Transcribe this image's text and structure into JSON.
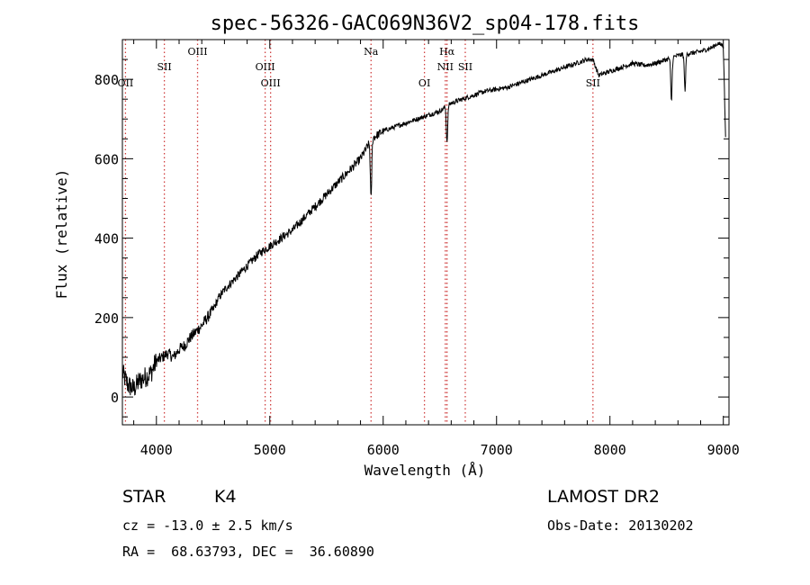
{
  "chart_data": {
    "type": "line",
    "title": "spec-56326-GAC069N36V2_sp04-178.fits",
    "xlabel": "Wavelength (Å)",
    "ylabel": "Flux (relative)",
    "xlim": [
      3700,
      9050
    ],
    "ylim": [
      -70,
      900
    ],
    "xticks": [
      4000,
      5000,
      6000,
      7000,
      8000,
      9000
    ],
    "yticks": [
      0,
      200,
      400,
      600,
      800
    ],
    "grid": false,
    "line_color": "#000000",
    "marker_color": "#d04040",
    "spectrum_anchors": [
      [
        3700,
        60
      ],
      [
        3750,
        30
      ],
      [
        3800,
        20
      ],
      [
        3850,
        40
      ],
      [
        3900,
        50
      ],
      [
        3950,
        60
      ],
      [
        4000,
        90
      ],
      [
        4050,
        100
      ],
      [
        4100,
        110
      ],
      [
        4150,
        100
      ],
      [
        4200,
        120
      ],
      [
        4250,
        130
      ],
      [
        4300,
        150
      ],
      [
        4350,
        165
      ],
      [
        4400,
        180
      ],
      [
        4450,
        200
      ],
      [
        4500,
        220
      ],
      [
        4550,
        250
      ],
      [
        4600,
        270
      ],
      [
        4700,
        300
      ],
      [
        4800,
        330
      ],
      [
        4900,
        360
      ],
      [
        5000,
        380
      ],
      [
        5100,
        400
      ],
      [
        5200,
        420
      ],
      [
        5300,
        450
      ],
      [
        5400,
        480
      ],
      [
        5500,
        510
      ],
      [
        5600,
        540
      ],
      [
        5700,
        570
      ],
      [
        5800,
        600
      ],
      [
        5900,
        650
      ],
      [
        6000,
        670
      ],
      [
        6100,
        680
      ],
      [
        6200,
        690
      ],
      [
        6300,
        700
      ],
      [
        6400,
        710
      ],
      [
        6500,
        720
      ],
      [
        6600,
        740
      ],
      [
        6700,
        750
      ],
      [
        6800,
        760
      ],
      [
        6900,
        770
      ],
      [
        7000,
        775
      ],
      [
        7100,
        780
      ],
      [
        7200,
        790
      ],
      [
        7300,
        800
      ],
      [
        7400,
        810
      ],
      [
        7500,
        820
      ],
      [
        7600,
        830
      ],
      [
        7700,
        840
      ],
      [
        7800,
        850
      ],
      [
        7850,
        850
      ],
      [
        7900,
        810
      ],
      [
        8000,
        820
      ],
      [
        8100,
        830
      ],
      [
        8200,
        840
      ],
      [
        8300,
        835
      ],
      [
        8400,
        840
      ],
      [
        8500,
        850
      ],
      [
        8600,
        860
      ],
      [
        8700,
        865
      ],
      [
        8800,
        870
      ],
      [
        8900,
        880
      ],
      [
        8950,
        890
      ],
      [
        9000,
        885
      ],
      [
        9020,
        650
      ]
    ],
    "absorption_features": [
      {
        "wavelength": 5893,
        "depth": 150
      },
      {
        "wavelength": 6563,
        "depth": 90
      },
      {
        "wavelength": 8542,
        "depth": 110
      },
      {
        "wavelength": 8662,
        "depth": 90
      }
    ],
    "line_markers": [
      {
        "label": "OII",
        "wavelength": 3727,
        "label_row": 2
      },
      {
        "label": "SII",
        "wavelength": 4070,
        "label_row": 1
      },
      {
        "label": "OIII",
        "wavelength": 4363,
        "label_row": 0
      },
      {
        "label": "OIII",
        "wavelength": 4959,
        "label_row": 1
      },
      {
        "label": "OIII",
        "wavelength": 5007,
        "label_row": 2
      },
      {
        "label": "Na",
        "wavelength": 5893,
        "label_row": 0
      },
      {
        "label": "OI",
        "wavelength": 6364,
        "label_row": 2
      },
      {
        "label": "Hα",
        "wavelength": 6563,
        "label_row": 0
      },
      {
        "label": "NII",
        "wavelength": 6548,
        "label_row": 1
      },
      {
        "label": "SII",
        "wavelength": 6724,
        "label_row": 1
      },
      {
        "label": "SII",
        "wavelength": 7850,
        "label_row": 2
      }
    ]
  },
  "info": {
    "object_class": "STAR",
    "subclass": "K4",
    "survey": "LAMOST DR2",
    "velocity": "cz = -13.0 ± 2.5 km/s",
    "obs_date": "Obs-Date: 20130202",
    "coordinates": "RA =  68.63793, DEC =  36.60890"
  }
}
